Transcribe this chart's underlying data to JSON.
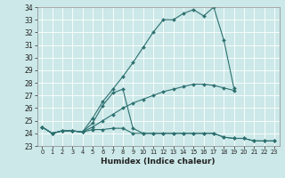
{
  "xlabel": "Humidex (Indice chaleur)",
  "x": [
    0,
    1,
    2,
    3,
    4,
    5,
    6,
    7,
    8,
    9,
    10,
    11,
    12,
    13,
    14,
    15,
    16,
    17,
    18,
    19,
    20,
    21,
    22,
    23
  ],
  "line1": [
    24.5,
    24.0,
    24.2,
    24.2,
    24.1,
    24.3,
    24.3,
    24.4,
    24.4,
    24.0,
    24.0,
    24.0,
    24.0,
    24.0,
    24.0,
    24.0,
    24.0,
    24.0,
    23.7,
    23.6,
    23.6,
    23.4,
    23.4,
    23.4
  ],
  "line2": [
    24.5,
    24.0,
    24.2,
    24.2,
    24.1,
    24.8,
    26.2,
    27.2,
    27.5,
    24.4,
    24.0,
    24.0,
    24.0,
    24.0,
    24.0,
    24.0,
    24.0,
    24.0,
    23.7,
    23.6,
    23.6,
    23.4,
    23.4,
    23.4
  ],
  "line3": [
    24.5,
    24.0,
    24.2,
    24.2,
    24.1,
    25.2,
    26.5,
    27.5,
    28.5,
    29.6,
    30.8,
    32.0,
    33.0,
    33.0,
    33.5,
    33.8,
    33.3,
    34.0,
    31.4,
    27.6,
    null,
    null,
    null,
    null
  ],
  "line4": [
    24.5,
    24.0,
    24.2,
    24.2,
    24.1,
    24.5,
    25.0,
    25.5,
    26.0,
    26.4,
    26.7,
    27.0,
    27.3,
    27.5,
    27.7,
    27.9,
    27.9,
    27.8,
    27.6,
    27.4,
    null,
    null,
    null,
    null
  ],
  "bg_color": "#cce8e8",
  "line_color": "#2d7070",
  "grid_color": "#b8d8d8",
  "ylim": [
    23,
    34
  ],
  "xlim": [
    -0.5,
    23.5
  ],
  "yticks": [
    23,
    24,
    25,
    26,
    27,
    28,
    29,
    30,
    31,
    32,
    33,
    34
  ]
}
